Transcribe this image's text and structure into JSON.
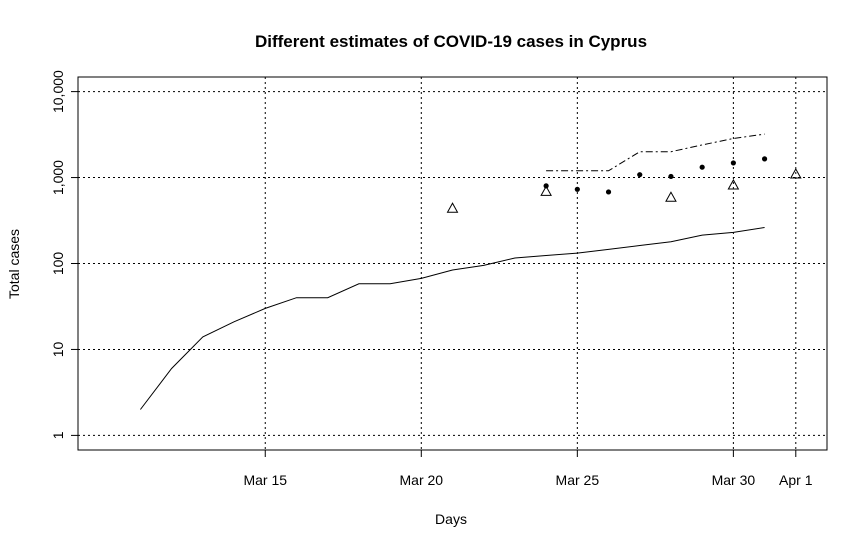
{
  "chart_data": {
    "type": "line",
    "title": "Different estimates of COVID-19 cases in Cyprus",
    "xlabel": "Days",
    "ylabel": "Total cases",
    "y_scale": "log",
    "ylim": [
      1,
      10000
    ],
    "xlim": [
      "2020-03-09",
      "2020-04-02"
    ],
    "grid": true,
    "x_ticks": [
      {
        "date": "2020-03-15",
        "label": "Mar 15"
      },
      {
        "date": "2020-03-20",
        "label": "Mar 20"
      },
      {
        "date": "2020-03-25",
        "label": "Mar 25"
      },
      {
        "date": "2020-03-30",
        "label": "Mar 30"
      },
      {
        "date": "2020-04-01",
        "label": "Apr 1"
      }
    ],
    "y_ticks": [
      {
        "value": 1,
        "label": "1"
      },
      {
        "value": 10,
        "label": "10"
      },
      {
        "value": 100,
        "label": "100"
      },
      {
        "value": 1000,
        "label": "1,000"
      },
      {
        "value": 10000,
        "label": "10,000"
      }
    ],
    "series": [
      {
        "style": "solid-line",
        "points": [
          [
            "2020-03-11",
            2
          ],
          [
            "2020-03-12",
            6
          ],
          [
            "2020-03-13",
            14
          ],
          [
            "2020-03-14",
            21
          ],
          [
            "2020-03-15",
            30
          ],
          [
            "2020-03-16",
            40
          ],
          [
            "2020-03-17",
            40
          ],
          [
            "2020-03-18",
            58
          ],
          [
            "2020-03-19",
            58
          ],
          [
            "2020-03-20",
            67
          ],
          [
            "2020-03-21",
            84
          ],
          [
            "2020-03-22",
            95
          ],
          [
            "2020-03-23",
            116
          ],
          [
            "2020-03-24",
            124
          ],
          [
            "2020-03-25",
            132
          ],
          [
            "2020-03-26",
            146
          ],
          [
            "2020-03-27",
            162
          ],
          [
            "2020-03-28",
            179
          ],
          [
            "2020-03-29",
            214
          ],
          [
            "2020-03-30",
            230
          ],
          [
            "2020-03-31",
            262
          ]
        ]
      },
      {
        "style": "dashed-line",
        "points": [
          [
            "2020-03-24",
            1200
          ],
          [
            "2020-03-25",
            1200
          ],
          [
            "2020-03-26",
            1200
          ],
          [
            "2020-03-27",
            2000
          ],
          [
            "2020-03-28",
            2000
          ],
          [
            "2020-03-29",
            2400
          ],
          [
            "2020-03-30",
            2850
          ],
          [
            "2020-03-31",
            3200
          ]
        ]
      },
      {
        "style": "filled-dots",
        "points": [
          [
            "2020-03-24",
            800
          ],
          [
            "2020-03-25",
            730
          ],
          [
            "2020-03-26",
            680
          ],
          [
            "2020-03-27",
            1080
          ],
          [
            "2020-03-28",
            1030
          ],
          [
            "2020-03-29",
            1320
          ],
          [
            "2020-03-30",
            1480
          ],
          [
            "2020-03-31",
            1650
          ]
        ]
      },
      {
        "style": "triangles",
        "points": [
          [
            "2020-03-21",
            440
          ],
          [
            "2020-03-24",
            690
          ],
          [
            "2020-03-28",
            590
          ],
          [
            "2020-03-30",
            820
          ],
          [
            "2020-04-01",
            1100
          ]
        ]
      }
    ]
  }
}
